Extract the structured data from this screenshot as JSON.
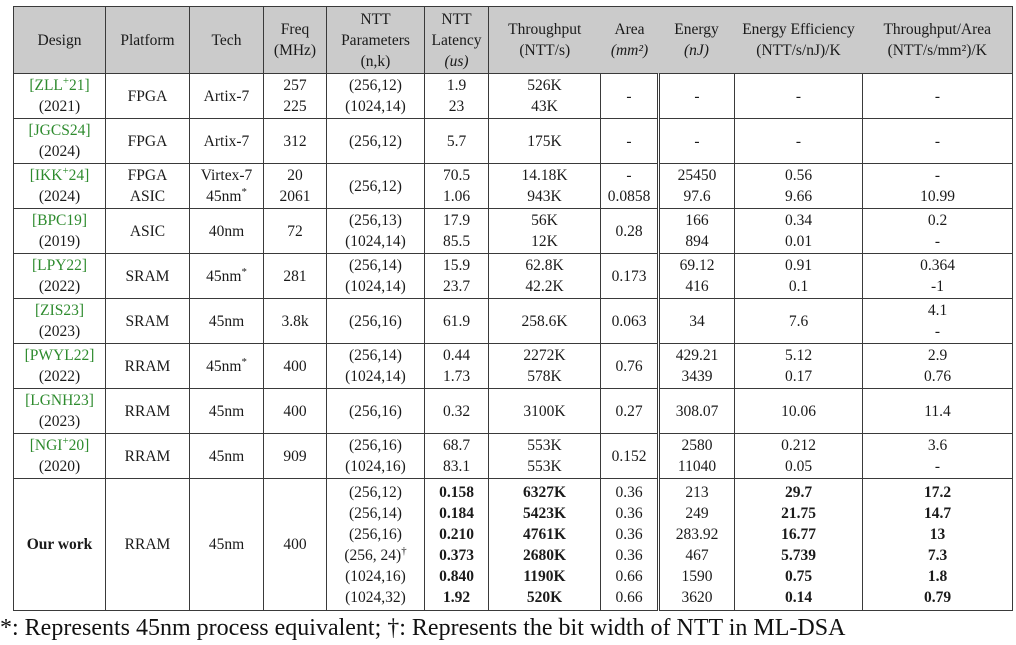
{
  "colors": {
    "cite_green": "#2e8b2e",
    "header_bg": "#cbcbcb",
    "border": "#3a3a3a"
  },
  "footnote": "*: Represents 45nm process equivalent; †: Represents the bit width of NTT in ML-DSA",
  "table": {
    "columns": [
      {
        "id": "design",
        "lines": [
          "Design"
        ],
        "italic": []
      },
      {
        "id": "platform",
        "lines": [
          "Platform"
        ],
        "italic": []
      },
      {
        "id": "tech",
        "lines": [
          "Tech"
        ],
        "italic": []
      },
      {
        "id": "freq",
        "lines": [
          "Freq",
          "(MHz)"
        ],
        "italic": []
      },
      {
        "id": "ntt-parameters",
        "lines": [
          "NTT",
          "Parameters",
          "(n,k)"
        ],
        "italic": []
      },
      {
        "id": "ntt-latency",
        "lines": [
          "NTT",
          "Latency",
          "(us)"
        ],
        "italic": [
          2
        ]
      },
      {
        "id": "throughput",
        "lines": [
          "Throughput",
          "(NTT/s)"
        ],
        "italic": []
      },
      {
        "id": "area",
        "lines": [
          "Area",
          "(mm²)"
        ],
        "italic": [
          1
        ]
      },
      {
        "id": "energy",
        "lines": [
          "Energy",
          "(nJ)"
        ],
        "italic": [
          1
        ]
      },
      {
        "id": "energy-efficiency",
        "lines": [
          "Energy Efficiency",
          "(NTT/s/nJ)/K"
        ],
        "italic": []
      },
      {
        "id": "throughput-per-area",
        "lines": [
          "Throughput/Area",
          "(NTT/s/mm²)/K"
        ],
        "italic": []
      }
    ],
    "rows": [
      {
        "name": "zll21",
        "cells": [
          [
            "[ZLL^{+}21]",
            "(2021)"
          ],
          [
            "FPGA"
          ],
          [
            "Artix-7"
          ],
          [
            "257",
            "225"
          ],
          [
            "(256,12)",
            "(1024,14)"
          ],
          [
            "1.9",
            "23"
          ],
          [
            "526K",
            "43K"
          ],
          [
            "-"
          ],
          [
            "-"
          ],
          [
            "-"
          ],
          [
            "-"
          ]
        ]
      },
      {
        "name": "jgcs24",
        "cells": [
          [
            "[JGCS24]",
            "(2024)"
          ],
          [
            "FPGA"
          ],
          [
            "Artix-7"
          ],
          [
            "312"
          ],
          [
            "(256,12)"
          ],
          [
            "5.7"
          ],
          [
            "175K"
          ],
          [
            "-"
          ],
          [
            "-"
          ],
          [
            "-"
          ],
          [
            "-"
          ]
        ]
      },
      {
        "name": "ikk24",
        "cells": [
          [
            "[IKK^{+}24]",
            "(2024)"
          ],
          [
            "FPGA",
            "ASIC"
          ],
          [
            "Virtex-7",
            "45nm^{*}"
          ],
          [
            "20",
            "2061"
          ],
          [
            "(256,12)"
          ],
          [
            "70.5",
            "1.06"
          ],
          [
            "14.18K",
            "943K"
          ],
          [
            "-",
            "0.0858"
          ],
          [
            "25450",
            "97.6"
          ],
          [
            "0.56",
            "9.66"
          ],
          [
            "-",
            "10.99"
          ]
        ]
      },
      {
        "name": "bpc19",
        "cells": [
          [
            "[BPC19]",
            "(2019)"
          ],
          [
            "ASIC"
          ],
          [
            "40nm"
          ],
          [
            "72"
          ],
          [
            "(256,13)",
            "(1024,14)"
          ],
          [
            "17.9",
            "85.5"
          ],
          [
            "56K",
            "12K"
          ],
          [
            "0.28"
          ],
          [
            "166",
            "894"
          ],
          [
            "0.34",
            "0.01"
          ],
          [
            "0.2",
            "-"
          ]
        ]
      },
      {
        "name": "lpy22",
        "cells": [
          [
            "[LPY22]",
            "(2022)"
          ],
          [
            "SRAM"
          ],
          [
            "45nm^{*}"
          ],
          [
            "281"
          ],
          [
            "(256,14)",
            "(1024,14)"
          ],
          [
            "15.9",
            "23.7"
          ],
          [
            "62.8K",
            "42.2K"
          ],
          [
            "0.173"
          ],
          [
            "69.12",
            "416"
          ],
          [
            "0.91",
            "0.1"
          ],
          [
            "0.364",
            "-1"
          ]
        ]
      },
      {
        "name": "zis23",
        "cells": [
          [
            "[ZIS23]",
            "(2023)"
          ],
          [
            "SRAM"
          ],
          [
            "45nm"
          ],
          [
            "3.8k"
          ],
          [
            "(256,16)"
          ],
          [
            "61.9"
          ],
          [
            "258.6K"
          ],
          [
            "0.063"
          ],
          [
            "34"
          ],
          [
            "7.6"
          ],
          [
            "4.1",
            "-"
          ]
        ]
      },
      {
        "name": "pwyl22",
        "cells": [
          [
            "[PWYL22]",
            "(2022)"
          ],
          [
            "RRAM"
          ],
          [
            "45nm^{*}"
          ],
          [
            "400"
          ],
          [
            "(256,14)",
            "(1024,14)"
          ],
          [
            "0.44",
            "1.73"
          ],
          [
            "2272K",
            "578K"
          ],
          [
            "0.76"
          ],
          [
            "429.21",
            "3439"
          ],
          [
            "5.12",
            "0.17"
          ],
          [
            "2.9",
            "0.76"
          ]
        ]
      },
      {
        "name": "lgnh23",
        "cells": [
          [
            "[LGNH23]",
            "(2023)"
          ],
          [
            "RRAM"
          ],
          [
            "45nm"
          ],
          [
            "400"
          ],
          [
            "(256,16)"
          ],
          [
            "0.32"
          ],
          [
            "3100K"
          ],
          [
            "0.27"
          ],
          [
            "308.07"
          ],
          [
            "10.06"
          ],
          [
            "11.4"
          ]
        ]
      },
      {
        "name": "ngi20",
        "cells": [
          [
            "[NGI^{+}20]",
            "(2020)"
          ],
          [
            "RRAM"
          ],
          [
            "45nm"
          ],
          [
            "909"
          ],
          [
            "(256,16)",
            "(1024,16)"
          ],
          [
            "68.7",
            "83.1"
          ],
          [
            "553K",
            "553K"
          ],
          [
            "0.152"
          ],
          [
            "2580",
            "11040"
          ],
          [
            "0.212",
            "0.05"
          ],
          [
            "3.6",
            "-"
          ]
        ]
      },
      {
        "name": "our-work",
        "tall": true,
        "bold_cols": [
          0,
          5,
          6,
          9,
          10
        ],
        "cells": [
          [
            "Our work"
          ],
          [
            "RRAM"
          ],
          [
            "45nm"
          ],
          [
            "400"
          ],
          [
            "(256,12)",
            "(256,14)",
            "(256,16)",
            "(256, 24)^{†}",
            "(1024,16)",
            "(1024,32)"
          ],
          [
            "0.158",
            "0.184",
            "0.210",
            "0.373",
            "0.840",
            "1.92"
          ],
          [
            "6327K",
            "5423K",
            "4761K",
            "2680K",
            "1190K",
            "520K"
          ],
          [
            "0.36",
            "0.36",
            "0.36",
            "0.36",
            "0.66",
            "0.66"
          ],
          [
            "213",
            "249",
            "283.92",
            "467",
            "1590",
            "3620"
          ],
          [
            "29.7",
            "21.75",
            "16.77",
            "5.739",
            "0.75",
            "0.14"
          ],
          [
            "17.2",
            "14.7",
            "13",
            "7.3",
            "1.8",
            "0.79"
          ]
        ]
      }
    ]
  }
}
